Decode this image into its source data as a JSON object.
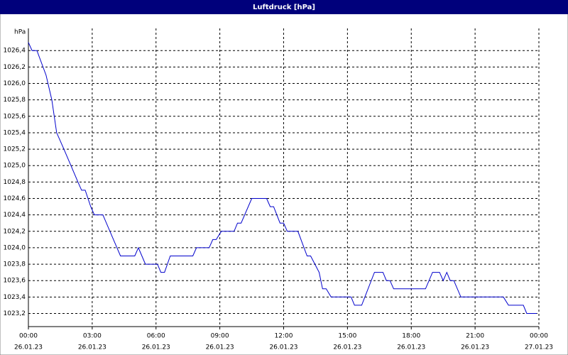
{
  "chart_data": {
    "type": "line",
    "title": "Luftdruck [hPa]",
    "y_unit": "hPa",
    "x": [
      0,
      0.17,
      0.4,
      0.83,
      1.1,
      1.33,
      1.67,
      2.0,
      2.33,
      2.5,
      2.67,
      2.93,
      3.1,
      3.5,
      4.0,
      4.33,
      5.0,
      5.17,
      5.5,
      6.07,
      6.23,
      6.4,
      6.67,
      7.73,
      7.9,
      8.5,
      8.67,
      8.83,
      9.07,
      9.67,
      9.83,
      10.0,
      10.5,
      11.2,
      11.37,
      11.53,
      11.83,
      12.0,
      12.17,
      12.67,
      13.1,
      13.27,
      13.67,
      13.83,
      14.0,
      14.23,
      15.17,
      15.33,
      15.67,
      16.27,
      16.67,
      16.83,
      17.0,
      17.17,
      18.67,
      19.0,
      19.33,
      19.5,
      19.67,
      19.83,
      20.0,
      20.33,
      22.33,
      22.57,
      23.27,
      23.43,
      23.9
    ],
    "series": [
      {
        "name": "Luftdruck",
        "color": "#0000cc",
        "values": [
          1026.5,
          1026.4,
          1026.4,
          1026.1,
          1025.8,
          1025.4,
          1025.2,
          1025.0,
          1024.8,
          1024.7,
          1024.7,
          1024.5,
          1024.4,
          1024.4,
          1024.1,
          1023.9,
          1023.9,
          1024.0,
          1023.8,
          1023.8,
          1023.7,
          1023.7,
          1023.9,
          1023.9,
          1024.0,
          1024.0,
          1024.1,
          1024.1,
          1024.2,
          1024.2,
          1024.3,
          1024.3,
          1024.6,
          1024.6,
          1024.5,
          1024.5,
          1024.3,
          1024.3,
          1024.2,
          1024.2,
          1023.9,
          1023.9,
          1023.7,
          1023.5,
          1023.5,
          1023.4,
          1023.4,
          1023.3,
          1023.3,
          1023.7,
          1023.7,
          1023.6,
          1023.6,
          1023.5,
          1023.5,
          1023.7,
          1023.7,
          1023.6,
          1023.7,
          1023.6,
          1023.6,
          1023.4,
          1023.4,
          1023.3,
          1023.3,
          1023.2,
          1023.2
        ]
      }
    ],
    "xlim": [
      0,
      24
    ],
    "xticks": [
      {
        "value": 0,
        "label": "00:00",
        "date": "26.01.23"
      },
      {
        "value": 3,
        "label": "03:00",
        "date": "26.01.23"
      },
      {
        "value": 6,
        "label": "06:00",
        "date": "26.01.23"
      },
      {
        "value": 9,
        "label": "09:00",
        "date": "26.01.23"
      },
      {
        "value": 12,
        "label": "12:00",
        "date": "26.01.23"
      },
      {
        "value": 15,
        "label": "15:00",
        "date": "26.01.23"
      },
      {
        "value": 18,
        "label": "18:00",
        "date": "26.01.23"
      },
      {
        "value": 21,
        "label": "21:00",
        "date": "26.01.23"
      },
      {
        "value": 24,
        "label": "00:00",
        "date": "27.01.23"
      }
    ],
    "ylim": [
      1023.04,
      1026.67
    ],
    "yticks": [
      {
        "value": 1023.2,
        "label": "1023,2"
      },
      {
        "value": 1023.4,
        "label": "1023,4"
      },
      {
        "value": 1023.6,
        "label": "1023,6"
      },
      {
        "value": 1023.8,
        "label": "1023,8"
      },
      {
        "value": 1024.0,
        "label": "1024,0"
      },
      {
        "value": 1024.2,
        "label": "1024,2"
      },
      {
        "value": 1024.4,
        "label": "1024,4"
      },
      {
        "value": 1024.6,
        "label": "1024,6"
      },
      {
        "value": 1024.8,
        "label": "1024,8"
      },
      {
        "value": 1025.0,
        "label": "1025,0"
      },
      {
        "value": 1025.2,
        "label": "1025,2"
      },
      {
        "value": 1025.4,
        "label": "1025,4"
      },
      {
        "value": 1025.6,
        "label": "1025,6"
      },
      {
        "value": 1025.8,
        "label": "1025,8"
      },
      {
        "value": 1026.0,
        "label": "1026,0"
      },
      {
        "value": 1026.2,
        "label": "1026,2"
      },
      {
        "value": 1026.4,
        "label": "1026,4"
      }
    ],
    "grid": true
  }
}
